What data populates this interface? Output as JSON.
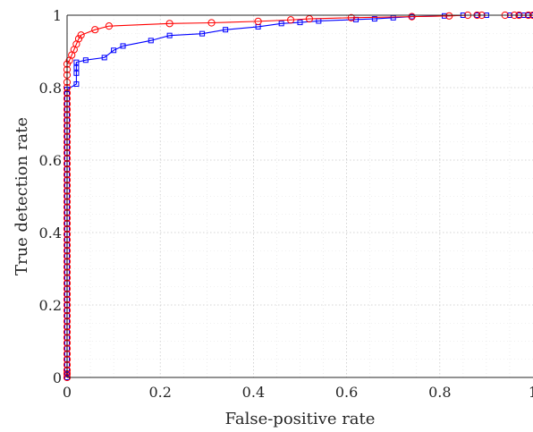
{
  "chart_data": {
    "type": "line",
    "title": "",
    "xlabel": "False-positive rate",
    "ylabel": "True detection rate",
    "xlim": [
      0,
      1
    ],
    "ylim": [
      0,
      1
    ],
    "grid": "dotted major and minor",
    "legend": "none",
    "x_ticks": [
      "0",
      "0.2",
      "0.4",
      "0.6",
      "0.8",
      "1"
    ],
    "y_ticks": [
      "0",
      "0.2",
      "0.4",
      "0.6",
      "0.8",
      "1"
    ],
    "series": [
      {
        "color": "#0000ff",
        "marker": "square",
        "points": [
          [
            0,
            0
          ],
          [
            0,
            0.01
          ],
          [
            0,
            0.02
          ],
          [
            0,
            0.035
          ],
          [
            0,
            0.05
          ],
          [
            0,
            0.065
          ],
          [
            0,
            0.08
          ],
          [
            0,
            0.095
          ],
          [
            0,
            0.11
          ],
          [
            0,
            0.125
          ],
          [
            0,
            0.14
          ],
          [
            0,
            0.155
          ],
          [
            0,
            0.17
          ],
          [
            0,
            0.185
          ],
          [
            0,
            0.2
          ],
          [
            0,
            0.215
          ],
          [
            0,
            0.23
          ],
          [
            0,
            0.245
          ],
          [
            0,
            0.26
          ],
          [
            0,
            0.275
          ],
          [
            0,
            0.29
          ],
          [
            0,
            0.305
          ],
          [
            0,
            0.32
          ],
          [
            0,
            0.335
          ],
          [
            0,
            0.35
          ],
          [
            0,
            0.365
          ],
          [
            0,
            0.38
          ],
          [
            0,
            0.395
          ],
          [
            0,
            0.41
          ],
          [
            0,
            0.425
          ],
          [
            0,
            0.44
          ],
          [
            0,
            0.455
          ],
          [
            0,
            0.47
          ],
          [
            0,
            0.485
          ],
          [
            0,
            0.5
          ],
          [
            0,
            0.515
          ],
          [
            0,
            0.53
          ],
          [
            0,
            0.545
          ],
          [
            0,
            0.56
          ],
          [
            0,
            0.575
          ],
          [
            0,
            0.59
          ],
          [
            0,
            0.605
          ],
          [
            0,
            0.62
          ],
          [
            0,
            0.635
          ],
          [
            0,
            0.65
          ],
          [
            0,
            0.665
          ],
          [
            0,
            0.68
          ],
          [
            0,
            0.695
          ],
          [
            0,
            0.71
          ],
          [
            0,
            0.725
          ],
          [
            0,
            0.74
          ],
          [
            0,
            0.755
          ],
          [
            0,
            0.77
          ],
          [
            0,
            0.785
          ],
          [
            0,
            0.795
          ],
          [
            0.02,
            0.81
          ],
          [
            0.02,
            0.84
          ],
          [
            0.02,
            0.855
          ],
          [
            0.02,
            0.87
          ],
          [
            0.04,
            0.876
          ],
          [
            0.08,
            0.883
          ],
          [
            0.1,
            0.903
          ],
          [
            0.12,
            0.915
          ],
          [
            0.18,
            0.93
          ],
          [
            0.22,
            0.944
          ],
          [
            0.29,
            0.949
          ],
          [
            0.34,
            0.96
          ],
          [
            0.41,
            0.968
          ],
          [
            0.46,
            0.977
          ],
          [
            0.5,
            0.98
          ],
          [
            0.54,
            0.984
          ],
          [
            0.62,
            0.988
          ],
          [
            0.66,
            0.99
          ],
          [
            0.7,
            0.993
          ],
          [
            0.74,
            0.996
          ],
          [
            0.81,
            0.998
          ],
          [
            0.85,
            1.0
          ],
          [
            0.88,
            1.0
          ],
          [
            0.9,
            1.0
          ],
          [
            0.95,
            1.0
          ],
          [
            0.97,
            1.0
          ],
          [
            0.98,
            1.0
          ],
          [
            0.99,
            1.0
          ],
          [
            1.0,
            1.0
          ]
        ]
      },
      {
        "color": "#ff0000",
        "marker": "circle",
        "points": [
          [
            0,
            0
          ],
          [
            0,
            0.01
          ],
          [
            0,
            0.02
          ],
          [
            0,
            0.035
          ],
          [
            0,
            0.05
          ],
          [
            0,
            0.065
          ],
          [
            0,
            0.08
          ],
          [
            0,
            0.095
          ],
          [
            0,
            0.11
          ],
          [
            0,
            0.125
          ],
          [
            0,
            0.14
          ],
          [
            0,
            0.155
          ],
          [
            0,
            0.17
          ],
          [
            0,
            0.185
          ],
          [
            0,
            0.2
          ],
          [
            0,
            0.215
          ],
          [
            0,
            0.23
          ],
          [
            0,
            0.245
          ],
          [
            0,
            0.26
          ],
          [
            0,
            0.275
          ],
          [
            0,
            0.29
          ],
          [
            0,
            0.305
          ],
          [
            0,
            0.32
          ],
          [
            0,
            0.335
          ],
          [
            0,
            0.35
          ],
          [
            0,
            0.365
          ],
          [
            0,
            0.38
          ],
          [
            0,
            0.395
          ],
          [
            0,
            0.41
          ],
          [
            0,
            0.425
          ],
          [
            0,
            0.44
          ],
          [
            0,
            0.455
          ],
          [
            0,
            0.47
          ],
          [
            0,
            0.485
          ],
          [
            0,
            0.5
          ],
          [
            0,
            0.515
          ],
          [
            0,
            0.53
          ],
          [
            0,
            0.545
          ],
          [
            0,
            0.56
          ],
          [
            0,
            0.575
          ],
          [
            0,
            0.59
          ],
          [
            0,
            0.605
          ],
          [
            0,
            0.62
          ],
          [
            0,
            0.635
          ],
          [
            0,
            0.65
          ],
          [
            0,
            0.665
          ],
          [
            0,
            0.68
          ],
          [
            0,
            0.695
          ],
          [
            0,
            0.71
          ],
          [
            0,
            0.725
          ],
          [
            0,
            0.74
          ],
          [
            0,
            0.755
          ],
          [
            0,
            0.77
          ],
          [
            0,
            0.785
          ],
          [
            0,
            0.8
          ],
          [
            0,
            0.815
          ],
          [
            0,
            0.835
          ],
          [
            0,
            0.85
          ],
          [
            0,
            0.865
          ],
          [
            0.005,
            0.875
          ],
          [
            0.01,
            0.89
          ],
          [
            0.015,
            0.905
          ],
          [
            0.02,
            0.92
          ],
          [
            0.025,
            0.935
          ],
          [
            0.03,
            0.945
          ],
          [
            0.06,
            0.96
          ],
          [
            0.09,
            0.97
          ],
          [
            0.22,
            0.977
          ],
          [
            0.31,
            0.979
          ],
          [
            0.41,
            0.983
          ],
          [
            0.48,
            0.987
          ],
          [
            0.52,
            0.99
          ],
          [
            0.61,
            0.993
          ],
          [
            0.74,
            0.996
          ],
          [
            0.82,
            0.998
          ],
          [
            0.86,
            1.0
          ],
          [
            0.88,
            1.0
          ],
          [
            0.89,
            1.0
          ],
          [
            0.94,
            1.0
          ],
          [
            0.96,
            1.0
          ],
          [
            0.97,
            1.0
          ],
          [
            0.99,
            1.0
          ],
          [
            1.0,
            1.0
          ]
        ]
      }
    ]
  }
}
